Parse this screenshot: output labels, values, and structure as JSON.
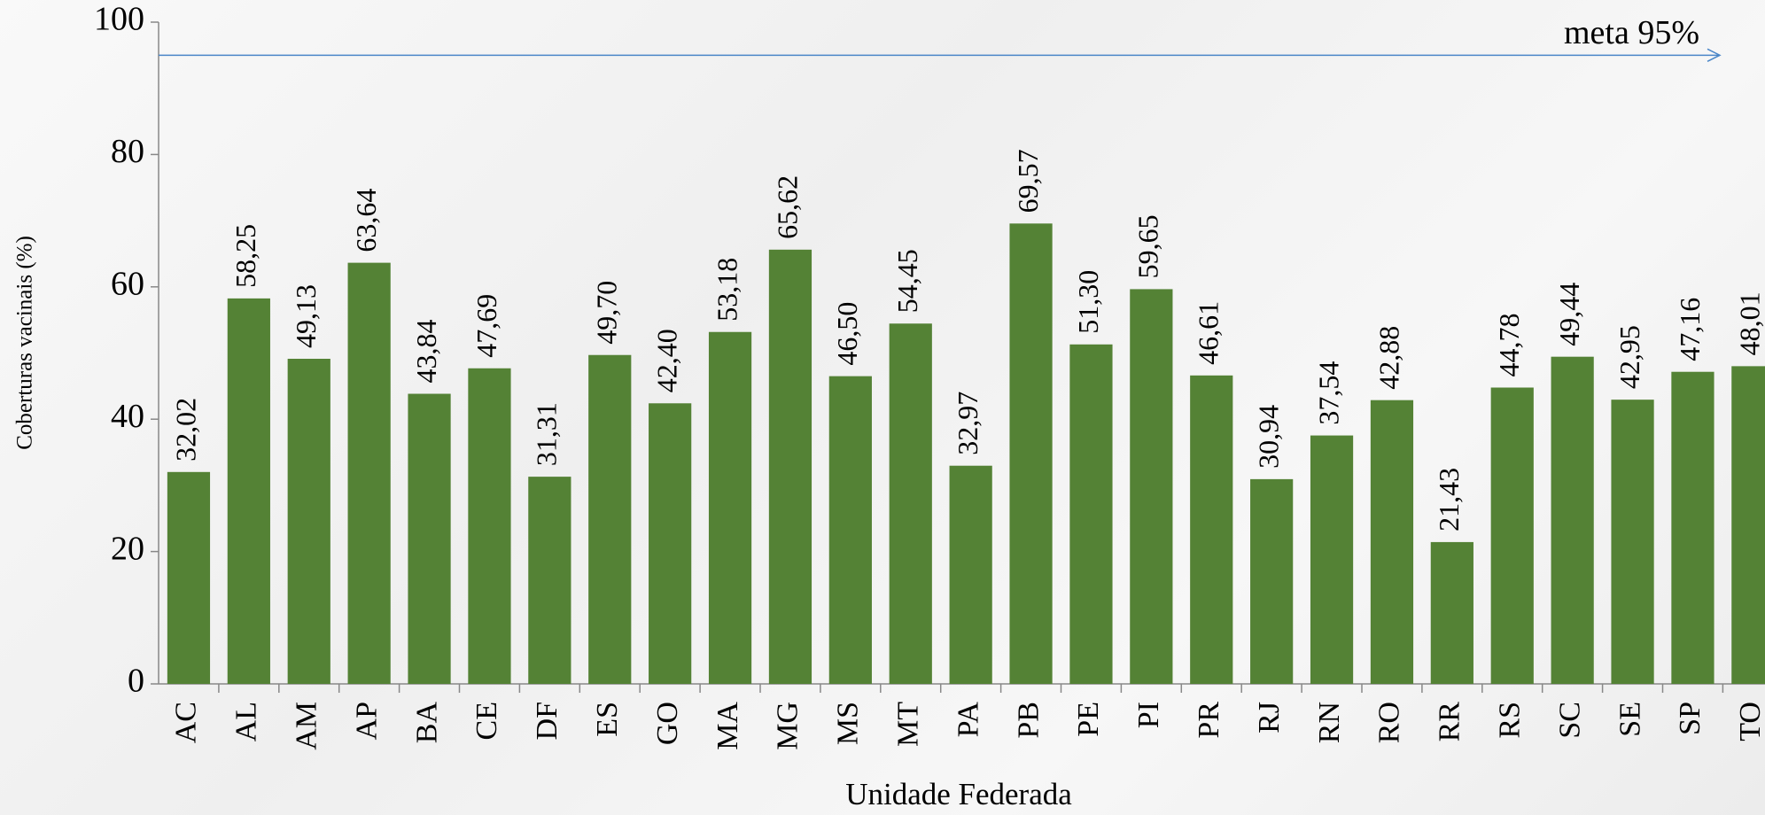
{
  "chart_data": {
    "type": "bar",
    "xlabel": "Unidade Federada",
    "ylabel": "Coberturas vacinais (%)",
    "categories": [
      "AC",
      "AL",
      "AM",
      "AP",
      "BA",
      "CE",
      "DF",
      "ES",
      "GO",
      "MA",
      "MG",
      "MS",
      "MT",
      "PA",
      "PB",
      "PE",
      "PI",
      "PR",
      "RJ",
      "RN",
      "RO",
      "RR",
      "RS",
      "SC",
      "SE",
      "SP",
      "TO"
    ],
    "values": [
      32.02,
      58.25,
      49.13,
      63.64,
      43.84,
      47.69,
      31.31,
      49.7,
      42.4,
      53.18,
      65.62,
      46.5,
      54.45,
      32.97,
      69.57,
      51.3,
      59.65,
      46.61,
      30.94,
      37.54,
      42.88,
      21.43,
      44.78,
      49.44,
      42.95,
      47.16,
      48.01
    ],
    "value_labels": [
      "32,02",
      "58,25",
      "49,13",
      "63,64",
      "43,84",
      "47,69",
      "31,31",
      "49,70",
      "42,40",
      "53,18",
      "65,62",
      "46,50",
      "54,45",
      "32,97",
      "69,57",
      "51,30",
      "59,65",
      "46,61",
      "30,94",
      "37,54",
      "42,88",
      "21,43",
      "44,78",
      "49,44",
      "42,95",
      "47,16",
      "48,01"
    ],
    "color": "#548235",
    "ylim": [
      0,
      100
    ],
    "yticks": [
      0,
      20,
      40,
      60,
      80,
      100
    ],
    "target": {
      "value": 95,
      "label": "meta 95%",
      "color": "#4a86c8"
    }
  }
}
